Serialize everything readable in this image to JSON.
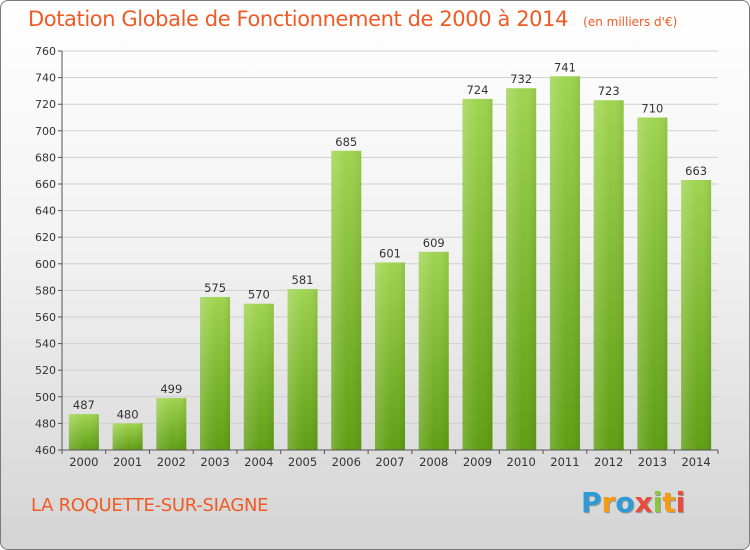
{
  "title": "Dotation Globale de Fonctionnement de 2000 à 2014",
  "unit": "(en milliers d'€)",
  "commune": "LA ROQUETTE-SUR-SIAGNE",
  "logo": {
    "text": "Proxiti",
    "letter_colors": [
      "#2e9ad6",
      "#f39c12",
      "#2e9ad6",
      "#e74c3c",
      "#8cc63f",
      "#f39c12",
      "#e74c3c"
    ]
  },
  "colors": {
    "title": "#f05a24",
    "bar_top": "#9fd450",
    "bar_bottom": "#5f9e12",
    "grid": "#cfcfcf",
    "axis": "#555555"
  },
  "chart_data": {
    "type": "bar",
    "categories": [
      "2000",
      "2001",
      "2002",
      "2003",
      "2004",
      "2005",
      "2006",
      "2007",
      "2008",
      "2009",
      "2010",
      "2011",
      "2012",
      "2013",
      "2014"
    ],
    "values": [
      487,
      480,
      499,
      575,
      570,
      581,
      685,
      601,
      609,
      724,
      732,
      741,
      723,
      710,
      663
    ],
    "ylim": [
      460,
      760
    ],
    "yticks": [
      460,
      480,
      500,
      520,
      540,
      560,
      580,
      600,
      620,
      640,
      660,
      680,
      700,
      720,
      740,
      760
    ],
    "grid": true,
    "legend": "none"
  }
}
